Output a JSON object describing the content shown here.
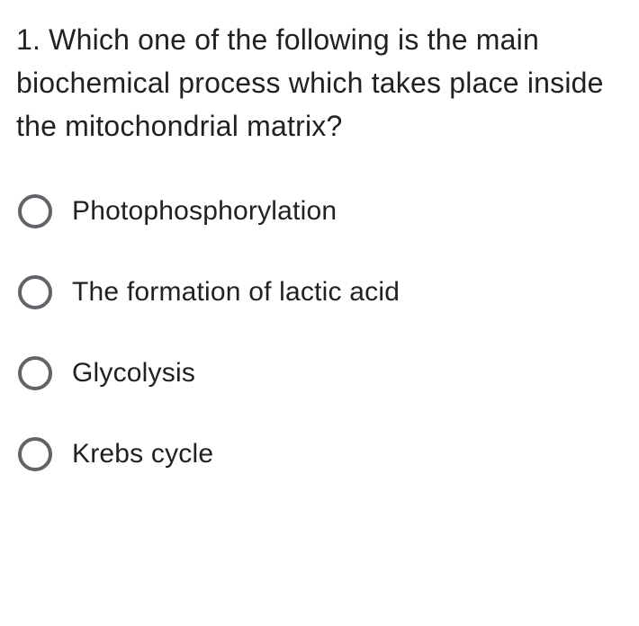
{
  "question": {
    "number": "1.",
    "text": "1. Which one of the following is the main biochemical process which takes place inside the mitochondrial matrix?",
    "fontsize": 32,
    "text_color": "#202124"
  },
  "options": [
    {
      "label": "Photophosphorylation",
      "selected": false
    },
    {
      "label": "The formation of lactic acid",
      "selected": false
    },
    {
      "label": "Glycolysis",
      "selected": false
    },
    {
      "label": "Krebs cycle",
      "selected": false
    }
  ],
  "styling": {
    "background_color": "#ffffff",
    "radio_border_color": "#606367",
    "radio_size": 38,
    "radio_border_width": 4,
    "option_fontsize": 30,
    "option_text_color": "#202124",
    "option_gap": 52
  }
}
